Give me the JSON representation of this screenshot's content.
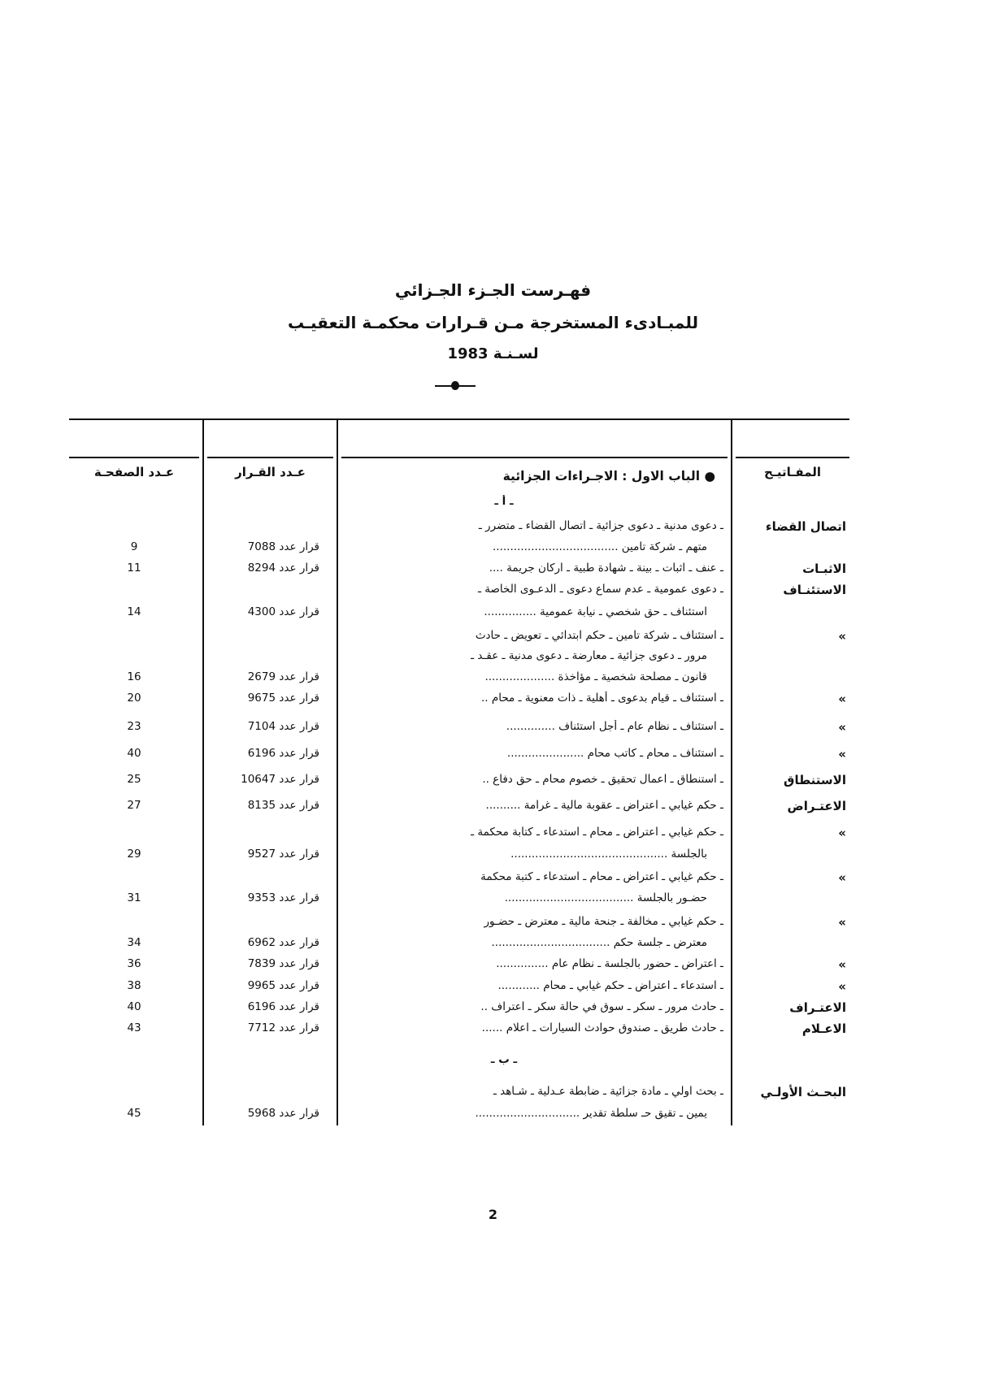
{
  "header": {
    "title_line1": "فهـرست الجـزء الجـزائي",
    "title_line2": "للمبـادىء المستخرجة مـن قـرارات محكمـة التعقيـب",
    "title_line3": "لسـنـة 1983"
  },
  "table": {
    "columns": {
      "keywords": "المفـاتيـح",
      "description": "",
      "decision": "عـدد القـرار",
      "page": "عـدد الصفحـة"
    },
    "rows": [
      {
        "keyword": "",
        "text": "● الباب الاول : الاجـراءات الجزائية",
        "decision": "",
        "page": "",
        "style": "heading"
      },
      {
        "keyword": "",
        "text": "ـ أ ـ",
        "decision": "",
        "page": "",
        "style": "section"
      },
      {
        "keyword": "اتصال القضاء",
        "text": "ـ دعوى مدنية ـ دعوى جزائية ـ اتصال القضاء ـ متضرر ـ",
        "decision": "",
        "page": ""
      },
      {
        "keyword": "",
        "text": "متهم ـ شركة تامين ....................................",
        "decision": "قرار عدد 7088",
        "page": "9",
        "indent": true
      },
      {
        "keyword": "الاثبـات",
        "text": "ـ عنف ـ اثبات ـ بينة ـ شهادة طبية ـ اركان جريمة ....",
        "decision": "قرار عدد 8294",
        "page": "11"
      },
      {
        "keyword": "الاستئنـاف",
        "text": "ـ دعوى عمومية ـ عدم سماع دعوى ـ الدعـوى الخاصة ـ",
        "decision": "",
        "page": ""
      },
      {
        "keyword": "",
        "text": "استئناف ـ حق شخصي ـ نيابة عمومية ...............",
        "decision": "قرار عدد 4300",
        "page": "14",
        "indent": true
      },
      {
        "keyword": "»",
        "text": "ـ استئناف ـ شركة تامين ـ حكم ابتدائي ـ تعويض ـ حادث",
        "decision": "",
        "page": ""
      },
      {
        "keyword": "",
        "text": "مرور ـ دعوى جزائية ـ معارضة ـ دعوى مدنية ـ عقـد ـ",
        "decision": "",
        "page": "",
        "indent": true
      },
      {
        "keyword": "",
        "text": "قانون ـ مصلحة شخصية ـ مؤاخذة ....................",
        "decision": "قرار عدد 2679",
        "page": "16",
        "indent": true
      },
      {
        "keyword": "»",
        "text": "ـ استئناف ـ قيام بدعوى ـ أهلية ـ ذات معنوية ـ محام ..",
        "decision": "قرار عدد 9675",
        "page": "20"
      },
      {
        "keyword": "»",
        "text": "ـ استئناف ـ نظام عام ـ أجل استئناف ..............",
        "decision": "قرار عدد 7104",
        "page": "23"
      },
      {
        "keyword": "»",
        "text": "ـ استئناف ـ محام ـ كاتب محام ......................",
        "decision": "قرار عدد 6196",
        "page": "40"
      },
      {
        "keyword": "الاستنطاق",
        "text": "ـ استنطاق ـ اعمال تحقيق ـ خصوم محام ـ حق دفاع ..",
        "decision": "قرار عدد 10647",
        "page": "25"
      },
      {
        "keyword": "الاعتـراض",
        "text": "ـ حكم غيابي ـ اعتراض ـ عقوبة مالية ـ غرامة ..........",
        "decision": "قرار عدد 8135",
        "page": "27"
      },
      {
        "keyword": "»",
        "text": "ـ حكم غيابي ـ اعتراض ـ محام ـ استدعاء ـ كتابة محكمة ـ",
        "decision": "",
        "page": ""
      },
      {
        "keyword": "",
        "text": "بالجلسة .............................................",
        "decision": "قرار عدد 9527",
        "page": "29",
        "indent": true
      },
      {
        "keyword": "»",
        "text": "ـ حكم غيابي ـ اعتراض ـ محام ـ استدعاء ـ كتبة محكمة",
        "decision": "",
        "page": ""
      },
      {
        "keyword": "",
        "text": "حضـور بالجلسة .....................................",
        "decision": "قرار عدد 9353",
        "page": "31",
        "indent": true
      },
      {
        "keyword": "»",
        "text": "ـ حكم غيابي ـ مخالفة ـ جنحة مالية ـ معترض ـ حضـور",
        "decision": "",
        "page": ""
      },
      {
        "keyword": "",
        "text": "معترض ـ جلسة حكم ..................................",
        "decision": "قرار عدد 6962",
        "page": "34",
        "indent": true
      },
      {
        "keyword": "»",
        "text": "ـ اعتراض ـ حضور بالجلسة ـ نظام عام ...............",
        "decision": "قرار عدد 7839",
        "page": "36"
      },
      {
        "keyword": "»",
        "text": "ـ استدعاء ـ اعتراض ـ حكم غيابي ـ محام ............",
        "decision": "قرار عدد 9965",
        "page": "38"
      },
      {
        "keyword": "الاعتـراف",
        "text": "ـ حادث مرور ـ سكر ـ سوق في حالة سكر ـ اعتراف ..",
        "decision": "قرار عدد 6196",
        "page": "40"
      },
      {
        "keyword": "الاعـلام",
        "text": "ـ حادث طريق ـ صندوق حوادث السيارات ـ اعلام ......",
        "decision": "قرار عدد 7712",
        "page": "43"
      },
      {
        "keyword": "",
        "text": "ـ ب ـ",
        "decision": "",
        "page": "",
        "style": "section"
      },
      {
        "keyword": "البحـث الأولـي",
        "text": "ـ بحث اولي ـ مادة جزائية ـ ضابطة عـدلية ـ شـاهد ـ",
        "decision": "",
        "page": ""
      },
      {
        "keyword": "",
        "text": "يمين ـ تقيق حـ سلطة تقدير ..............................",
        "decision": "قرار عدد 5968",
        "page": "45",
        "indent": true
      }
    ]
  },
  "footer": {
    "page_number": "2"
  }
}
